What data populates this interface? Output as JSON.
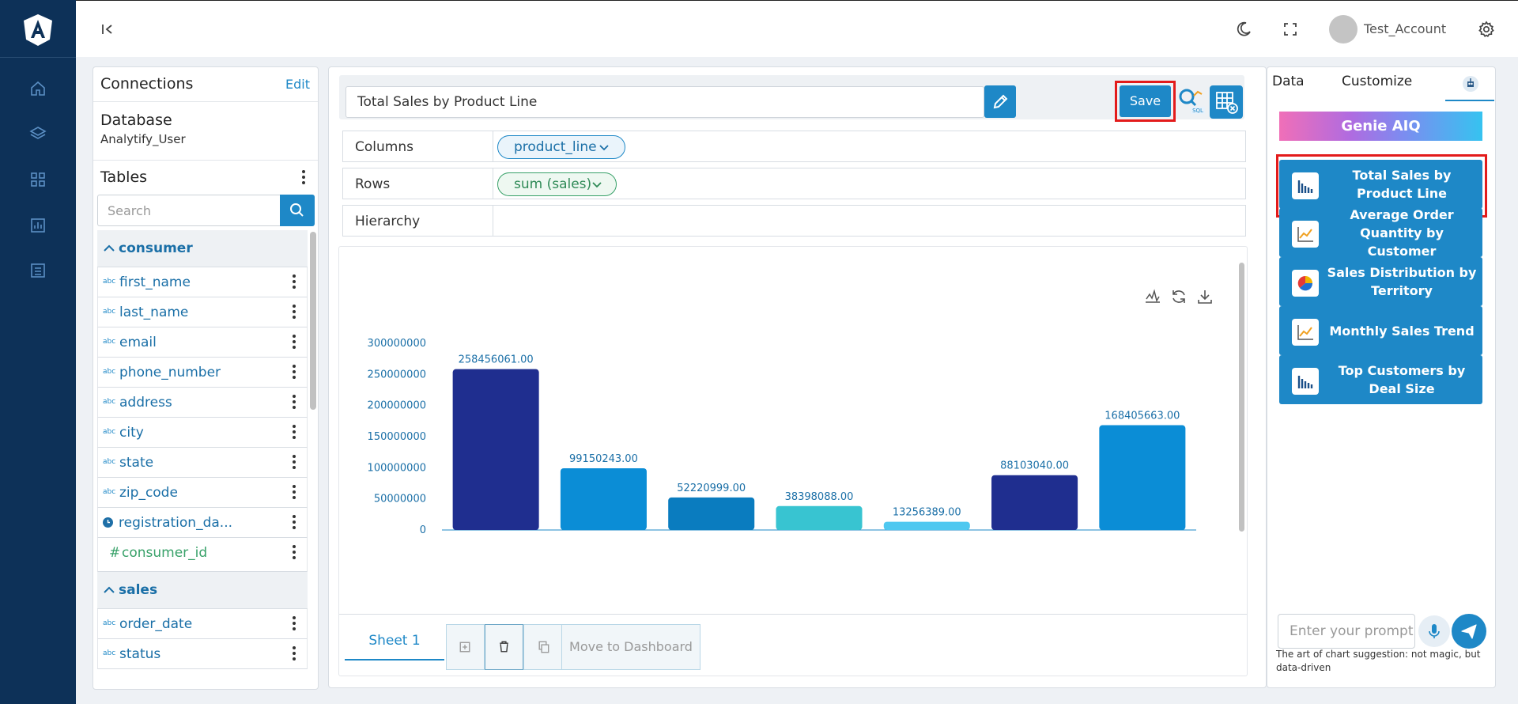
{
  "app": {
    "account_name": "Test_Account"
  },
  "connections": {
    "title": "Connections",
    "edit_label": "Edit",
    "database_title": "Database",
    "database_name": "Analytify_User",
    "tables_title": "Tables",
    "search_placeholder": "Search"
  },
  "tables": [
    {
      "name": "consumer",
      "fields": [
        {
          "type": "abc",
          "name": "first_name"
        },
        {
          "type": "abc",
          "name": "last_name"
        },
        {
          "type": "abc",
          "name": "email"
        },
        {
          "type": "abc",
          "name": "phone_number"
        },
        {
          "type": "abc",
          "name": "address"
        },
        {
          "type": "abc",
          "name": "city"
        },
        {
          "type": "abc",
          "name": "state"
        },
        {
          "type": "abc",
          "name": "zip_code"
        },
        {
          "type": "date",
          "name": "registration_da..."
        },
        {
          "type": "#",
          "name": "consumer_id"
        }
      ]
    },
    {
      "name": "sales",
      "fields": [
        {
          "type": "abc",
          "name": "order_date"
        },
        {
          "type": "abc",
          "name": "status"
        }
      ]
    }
  ],
  "editor": {
    "chart_title": "Total Sales by Product Line",
    "save_label": "Save",
    "shelves": {
      "columns_label": "Columns",
      "columns_pill": "product_line",
      "rows_label": "Rows",
      "rows_pill": "sum (sales)",
      "hierarchy_label": "Hierarchy"
    },
    "sheet_tab": "Sheet 1",
    "move_to_dashboard": "Move to Dashboard"
  },
  "chart_data": {
    "type": "bar",
    "title": "",
    "xlabel": "",
    "ylabel": "",
    "ylim": [
      0,
      300000000
    ],
    "y_ticks": [
      "300000000",
      "250000000",
      "200000000",
      "150000000",
      "100000000",
      "50000000",
      "0"
    ],
    "values": [
      258456061,
      99150243,
      52220999,
      38398088,
      13256389,
      88103040,
      168405663
    ],
    "data_labels": [
      "258456061.00",
      "99150243.00",
      "52220999.00",
      "38398088.00",
      "13256389.00",
      "88103040.00",
      "168405663.00"
    ],
    "colors": [
      "#1f2e8f",
      "#0b8dd6",
      "#0a7cbf",
      "#38c4d1",
      "#4fc8f0",
      "#1f2e8f",
      "#0b8dd6"
    ]
  },
  "right_panel": {
    "tab_data": "Data",
    "tab_customize": "Customize",
    "genie_label": "Genie AIQ",
    "suggestions": [
      {
        "label": "Total Sales by Product Line",
        "icon": "bar-chart-icon"
      },
      {
        "label": "Average Order Quantity by Customer",
        "icon": "line-chart-icon"
      },
      {
        "label": "Sales Distribution by Territory",
        "icon": "pie-chart-icon"
      },
      {
        "label": "Monthly Sales Trend",
        "icon": "line-chart-icon"
      },
      {
        "label": "Top Customers by Deal Size",
        "icon": "bar-chart-icon"
      }
    ],
    "prompt_placeholder": "Enter your prompt",
    "tagline": "The art of chart suggestion: not magic, but data-driven"
  },
  "colors": {
    "accent": "#1e88c7",
    "rail": "#0d3158",
    "highlight": "#e31b1b"
  }
}
